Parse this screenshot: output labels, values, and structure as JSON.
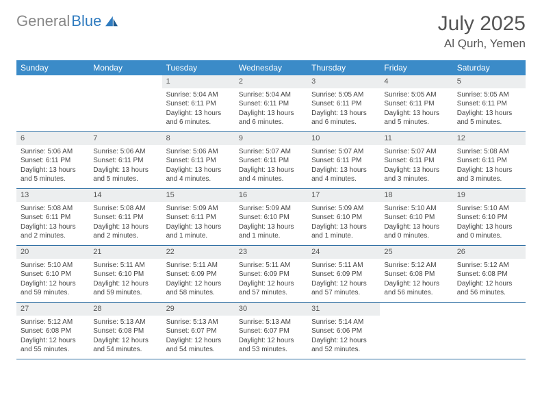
{
  "brand": {
    "text1": "General",
    "text2": "Blue"
  },
  "title": "July 2025",
  "location": "Al Qurh, Yemen",
  "colors": {
    "header_bg": "#3b8bc8",
    "header_text": "#ffffff",
    "row_divider": "#2f6fa3",
    "day_header_bg": "#eceeef",
    "brand_gray": "#888888",
    "brand_blue": "#2f7bbf",
    "title_color": "#555555",
    "text_color": "#444444",
    "background": "#ffffff"
  },
  "fonts": {
    "title_size": 30,
    "location_size": 17,
    "weekday_size": 12,
    "daynum_size": 11,
    "body_size": 10
  },
  "weekdays": [
    "Sunday",
    "Monday",
    "Tuesday",
    "Wednesday",
    "Thursday",
    "Friday",
    "Saturday"
  ],
  "weeks": [
    [
      null,
      null,
      {
        "n": "1",
        "sr": "5:04 AM",
        "ss": "6:11 PM",
        "dl": "13 hours and 6 minutes."
      },
      {
        "n": "2",
        "sr": "5:04 AM",
        "ss": "6:11 PM",
        "dl": "13 hours and 6 minutes."
      },
      {
        "n": "3",
        "sr": "5:05 AM",
        "ss": "6:11 PM",
        "dl": "13 hours and 6 minutes."
      },
      {
        "n": "4",
        "sr": "5:05 AM",
        "ss": "6:11 PM",
        "dl": "13 hours and 5 minutes."
      },
      {
        "n": "5",
        "sr": "5:05 AM",
        "ss": "6:11 PM",
        "dl": "13 hours and 5 minutes."
      }
    ],
    [
      {
        "n": "6",
        "sr": "5:06 AM",
        "ss": "6:11 PM",
        "dl": "13 hours and 5 minutes."
      },
      {
        "n": "7",
        "sr": "5:06 AM",
        "ss": "6:11 PM",
        "dl": "13 hours and 5 minutes."
      },
      {
        "n": "8",
        "sr": "5:06 AM",
        "ss": "6:11 PM",
        "dl": "13 hours and 4 minutes."
      },
      {
        "n": "9",
        "sr": "5:07 AM",
        "ss": "6:11 PM",
        "dl": "13 hours and 4 minutes."
      },
      {
        "n": "10",
        "sr": "5:07 AM",
        "ss": "6:11 PM",
        "dl": "13 hours and 4 minutes."
      },
      {
        "n": "11",
        "sr": "5:07 AM",
        "ss": "6:11 PM",
        "dl": "13 hours and 3 minutes."
      },
      {
        "n": "12",
        "sr": "5:08 AM",
        "ss": "6:11 PM",
        "dl": "13 hours and 3 minutes."
      }
    ],
    [
      {
        "n": "13",
        "sr": "5:08 AM",
        "ss": "6:11 PM",
        "dl": "13 hours and 2 minutes."
      },
      {
        "n": "14",
        "sr": "5:08 AM",
        "ss": "6:11 PM",
        "dl": "13 hours and 2 minutes."
      },
      {
        "n": "15",
        "sr": "5:09 AM",
        "ss": "6:11 PM",
        "dl": "13 hours and 1 minute."
      },
      {
        "n": "16",
        "sr": "5:09 AM",
        "ss": "6:10 PM",
        "dl": "13 hours and 1 minute."
      },
      {
        "n": "17",
        "sr": "5:09 AM",
        "ss": "6:10 PM",
        "dl": "13 hours and 1 minute."
      },
      {
        "n": "18",
        "sr": "5:10 AM",
        "ss": "6:10 PM",
        "dl": "13 hours and 0 minutes."
      },
      {
        "n": "19",
        "sr": "5:10 AM",
        "ss": "6:10 PM",
        "dl": "13 hours and 0 minutes."
      }
    ],
    [
      {
        "n": "20",
        "sr": "5:10 AM",
        "ss": "6:10 PM",
        "dl": "12 hours and 59 minutes."
      },
      {
        "n": "21",
        "sr": "5:11 AM",
        "ss": "6:10 PM",
        "dl": "12 hours and 59 minutes."
      },
      {
        "n": "22",
        "sr": "5:11 AM",
        "ss": "6:09 PM",
        "dl": "12 hours and 58 minutes."
      },
      {
        "n": "23",
        "sr": "5:11 AM",
        "ss": "6:09 PM",
        "dl": "12 hours and 57 minutes."
      },
      {
        "n": "24",
        "sr": "5:11 AM",
        "ss": "6:09 PM",
        "dl": "12 hours and 57 minutes."
      },
      {
        "n": "25",
        "sr": "5:12 AM",
        "ss": "6:08 PM",
        "dl": "12 hours and 56 minutes."
      },
      {
        "n": "26",
        "sr": "5:12 AM",
        "ss": "6:08 PM",
        "dl": "12 hours and 56 minutes."
      }
    ],
    [
      {
        "n": "27",
        "sr": "5:12 AM",
        "ss": "6:08 PM",
        "dl": "12 hours and 55 minutes."
      },
      {
        "n": "28",
        "sr": "5:13 AM",
        "ss": "6:08 PM",
        "dl": "12 hours and 54 minutes."
      },
      {
        "n": "29",
        "sr": "5:13 AM",
        "ss": "6:07 PM",
        "dl": "12 hours and 54 minutes."
      },
      {
        "n": "30",
        "sr": "5:13 AM",
        "ss": "6:07 PM",
        "dl": "12 hours and 53 minutes."
      },
      {
        "n": "31",
        "sr": "5:14 AM",
        "ss": "6:06 PM",
        "dl": "12 hours and 52 minutes."
      },
      null,
      null
    ]
  ],
  "labels": {
    "sunrise": "Sunrise:",
    "sunset": "Sunset:",
    "daylight": "Daylight:"
  }
}
